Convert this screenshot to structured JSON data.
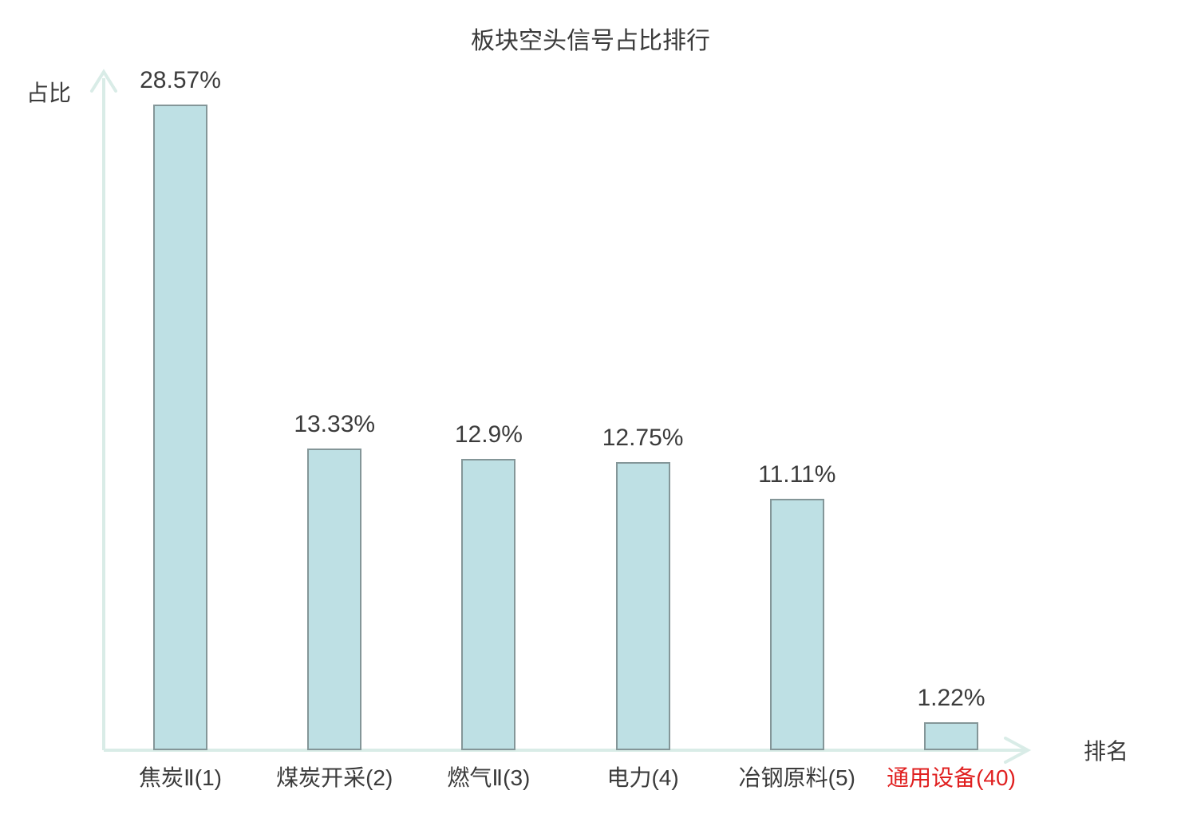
{
  "title": "板块空头信号占比排行",
  "y_axis_label": "占比",
  "x_axis_label": "排名",
  "colors": {
    "bar_fill": "#bee0e4",
    "bar_border": "#849698",
    "axis": "#d9ece7",
    "text": "#3b3b3b",
    "highlight_red": "#e02020"
  },
  "chart_data": {
    "type": "bar",
    "title": "板块空头信号占比排行",
    "xlabel": "排名",
    "ylabel": "占比",
    "categories": [
      "焦炭Ⅱ(1)",
      "煤炭开采(2)",
      "燃气Ⅱ(3)",
      "电力(4)",
      "冶钢原料(5)",
      "通用设备(40)"
    ],
    "values": [
      28.57,
      13.33,
      12.9,
      12.75,
      11.11,
      1.22
    ],
    "value_labels": [
      "28.57%",
      "13.33%",
      "12.9%",
      "12.75%",
      "11.11%",
      "1.22%"
    ],
    "category_label_colors": [
      "#3b3b3b",
      "#3b3b3b",
      "#3b3b3b",
      "#3b3b3b",
      "#3b3b3b",
      "#e02020"
    ],
    "highlighted_category_index": 5,
    "ylim": [
      0,
      30
    ],
    "grid": false,
    "legend": null,
    "bar_orientation": "vertical"
  }
}
